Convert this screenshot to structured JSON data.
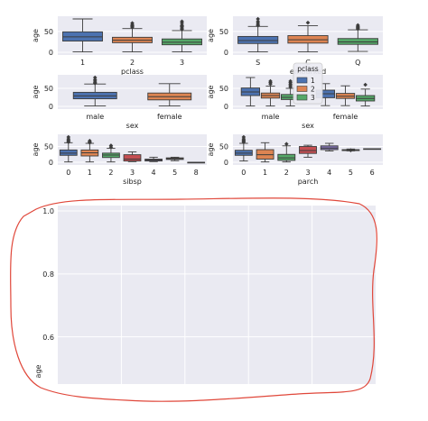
{
  "chart_data": [
    {
      "type": "box",
      "xlabel": "pclass",
      "ylabel": "age",
      "categories": [
        "1",
        "2",
        "3"
      ],
      "yticks": [
        "0",
        "50"
      ],
      "ylim": [
        0,
        80
      ],
      "boxes": [
        {
          "min": 1,
          "q1": 27,
          "median": 37,
          "q3": 49,
          "max": 80,
          "outliers": []
        },
        {
          "min": 1,
          "q1": 23,
          "median": 29,
          "q3": 36,
          "max": 57,
          "outliers": [
            60,
            62,
            64,
            66,
            70
          ]
        },
        {
          "min": 1,
          "q1": 18,
          "median": 24,
          "q3": 32,
          "max": 52,
          "outliers": [
            55,
            58,
            61,
            63,
            65,
            70,
            74
          ]
        }
      ],
      "colors": [
        "#4c72b0",
        "#dd8452",
        "#55a868"
      ]
    },
    {
      "type": "box",
      "xlabel": "embarked",
      "ylabel": "age",
      "categories": [
        "S",
        "C",
        "Q"
      ],
      "yticks": [
        "0",
        "50"
      ],
      "ylim": [
        0,
        80
      ],
      "boxes": [
        {
          "min": 1,
          "q1": 21,
          "median": 28,
          "q3": 38,
          "max": 62,
          "outliers": [
            64,
            66,
            70,
            74,
            80
          ]
        },
        {
          "min": 1,
          "q1": 22,
          "median": 30,
          "q3": 40,
          "max": 64,
          "outliers": [
            71
          ]
        },
        {
          "min": 2,
          "q1": 19,
          "median": 25,
          "q3": 33,
          "max": 54,
          "outliers": [
            56,
            58,
            60,
            62,
            65
          ]
        }
      ],
      "colors": [
        "#4c72b0",
        "#dd8452",
        "#55a868"
      ]
    },
    {
      "type": "box",
      "xlabel": "sex",
      "ylabel": "age",
      "categories": [
        "male",
        "female"
      ],
      "yticks": [
        "0",
        "50"
      ],
      "ylim": [
        0,
        80
      ],
      "boxes": [
        {
          "min": 1,
          "q1": 21,
          "median": 29,
          "q3": 39,
          "max": 62,
          "outliers": [
            64,
            66,
            70,
            74,
            80
          ]
        },
        {
          "min": 1,
          "q1": 18,
          "median": 27,
          "q3": 37,
          "max": 63,
          "outliers": []
        }
      ],
      "colors": [
        "#4c72b0",
        "#dd8452"
      ]
    },
    {
      "type": "box",
      "xlabel": "sex",
      "ylabel": "age",
      "categories": [
        "male",
        "female"
      ],
      "yticks": [
        "0",
        "50"
      ],
      "ylim": [
        0,
        80
      ],
      "legend_title": "pclass",
      "legend_labels": [
        "1",
        "2",
        "3"
      ],
      "series_colors": [
        "#4c72b0",
        "#dd8452",
        "#55a868"
      ],
      "groups": [
        [
          {
            "min": 1,
            "q1": 30,
            "median": 40,
            "q3": 51,
            "max": 80,
            "outliers": []
          },
          {
            "min": 1,
            "q1": 23,
            "median": 30,
            "q3": 37,
            "max": 56,
            "outliers": [
              62,
              66,
              70
            ]
          },
          {
            "min": 1,
            "q1": 19,
            "median": 25,
            "q3": 33,
            "max": 50,
            "outliers": [
              54,
              58,
              62,
              66,
              70
            ]
          }
        ],
        [
          {
            "min": 2,
            "q1": 24,
            "median": 35,
            "q3": 45,
            "max": 63,
            "outliers": []
          },
          {
            "min": 2,
            "q1": 22,
            "median": 28,
            "q3": 36,
            "max": 57,
            "outliers": []
          },
          {
            "min": 1,
            "q1": 15,
            "median": 22,
            "q3": 30,
            "max": 48,
            "outliers": [
              60
            ]
          }
        ]
      ]
    },
    {
      "type": "box",
      "xlabel": "sibsp",
      "ylabel": "age",
      "categories": [
        "0",
        "1",
        "2",
        "3",
        "4",
        "5",
        "8"
      ],
      "yticks": [
        "0",
        "50"
      ],
      "ylim": [
        0,
        80
      ],
      "boxes": [
        {
          "min": 1,
          "q1": 22,
          "median": 29,
          "q3": 39,
          "max": 62,
          "outliers": [
            64,
            66,
            70,
            74,
            80
          ]
        },
        {
          "min": 1,
          "q1": 20,
          "median": 30,
          "q3": 39,
          "max": 60,
          "outliers": [
            62,
            64,
            68
          ]
        },
        {
          "min": 1,
          "q1": 15,
          "median": 23,
          "q3": 29,
          "max": 44,
          "outliers": [
            48,
            53
          ]
        },
        {
          "min": 2,
          "q1": 4,
          "median": 10,
          "q3": 24,
          "max": 33,
          "outliers": []
        },
        {
          "min": 2,
          "q1": 4,
          "median": 7,
          "q3": 10,
          "max": 16,
          "outliers": []
        },
        {
          "min": 5,
          "q1": 9,
          "median": 11,
          "q3": 14,
          "max": 16,
          "outliers": []
        },
        {
          "min": 0,
          "q1": 0,
          "median": 0,
          "q3": 0,
          "max": 0,
          "outliers": []
        }
      ],
      "colors": [
        "#4c72b0",
        "#dd8452",
        "#55a868",
        "#c44e52",
        "#8172b3",
        "#937860",
        "#da8bc3"
      ]
    },
    {
      "type": "box",
      "xlabel": "parch",
      "ylabel": "age",
      "categories": [
        "0",
        "1",
        "2",
        "3",
        "4",
        "5",
        "6"
      ],
      "yticks": [
        "0",
        "50"
      ],
      "ylim": [
        0,
        80
      ],
      "boxes": [
        {
          "min": 4,
          "q1": 22,
          "median": 29,
          "q3": 38,
          "max": 60,
          "outliers": [
            64,
            66,
            70,
            74,
            80
          ]
        },
        {
          "min": 1,
          "q1": 10,
          "median": 24,
          "q3": 40,
          "max": 62,
          "outliers": []
        },
        {
          "min": 1,
          "q1": 6,
          "median": 14,
          "q3": 25,
          "max": 52,
          "outliers": [
            58
          ]
        },
        {
          "min": 16,
          "q1": 28,
          "median": 37,
          "q3": 50,
          "max": 54,
          "outliers": []
        },
        {
          "min": 36,
          "q1": 40,
          "median": 45,
          "q3": 52,
          "max": 60,
          "outliers": []
        },
        {
          "min": 36,
          "q1": 37,
          "median": 39,
          "q3": 40,
          "max": 42,
          "outliers": [
            38
          ]
        },
        {
          "min": 43,
          "q1": 43,
          "median": 43,
          "q3": 43,
          "max": 43,
          "outliers": []
        }
      ],
      "colors": [
        "#4c72b0",
        "#dd8452",
        "#55a868",
        "#c44e52",
        "#8172b3",
        "#937860",
        "#da8bc3"
      ]
    },
    {
      "type": "empty",
      "ylabel": "age",
      "yticks": [
        "1.0",
        "0.8",
        "0.6"
      ],
      "yvalues": [
        1.0,
        0.8,
        0.6
      ],
      "ylim": [
        0.45,
        1.0
      ],
      "xgrid_count": 5
    }
  ],
  "annotation": {
    "shape": "hand-drawn-outline",
    "color": "#e0473a"
  }
}
